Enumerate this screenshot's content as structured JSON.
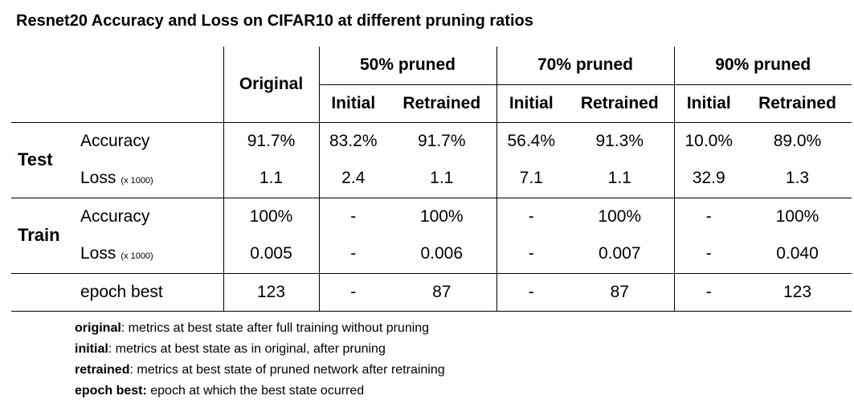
{
  "title": "Resnet20 Accuracy and Loss on CIFAR10 at different pruning ratios",
  "header": {
    "original": "Original",
    "groups": [
      "50% pruned",
      "70% pruned",
      "90% pruned"
    ],
    "sub_initial": "Initial",
    "sub_retrained": "Retrained"
  },
  "sections": {
    "test": "Test",
    "train": "Train"
  },
  "metrics": {
    "accuracy": "Accuracy",
    "loss": "Loss",
    "loss_unit": "(x 1000)",
    "epoch_best": "epoch best"
  },
  "rows": {
    "test_accuracy": [
      "91.7%",
      "83.2%",
      "91.7%",
      "56.4%",
      "91.3%",
      "10.0%",
      "89.0%"
    ],
    "test_loss": [
      "1.1",
      "2.4",
      "1.1",
      "7.1",
      "1.1",
      "32.9",
      "1.3"
    ],
    "train_accuracy": [
      "100%",
      "-",
      "100%",
      "-",
      "100%",
      "-",
      "100%"
    ],
    "train_loss": [
      "0.005",
      "-",
      "0.006",
      "-",
      "0.007",
      "-",
      "0.040"
    ],
    "epoch_best": [
      "123",
      "-",
      "87",
      "-",
      "87",
      "-",
      "123"
    ]
  },
  "legend": [
    {
      "term": "original",
      "desc": ": metrics at best state after full training without pruning"
    },
    {
      "term": "initial",
      "desc": ": metrics at best state as in original, after pruning"
    },
    {
      "term": "retrained",
      "desc": ": metrics at best state of pruned network after retraining"
    },
    {
      "term": "epoch best:",
      "desc": " epoch at which the best state ocurred"
    }
  ]
}
